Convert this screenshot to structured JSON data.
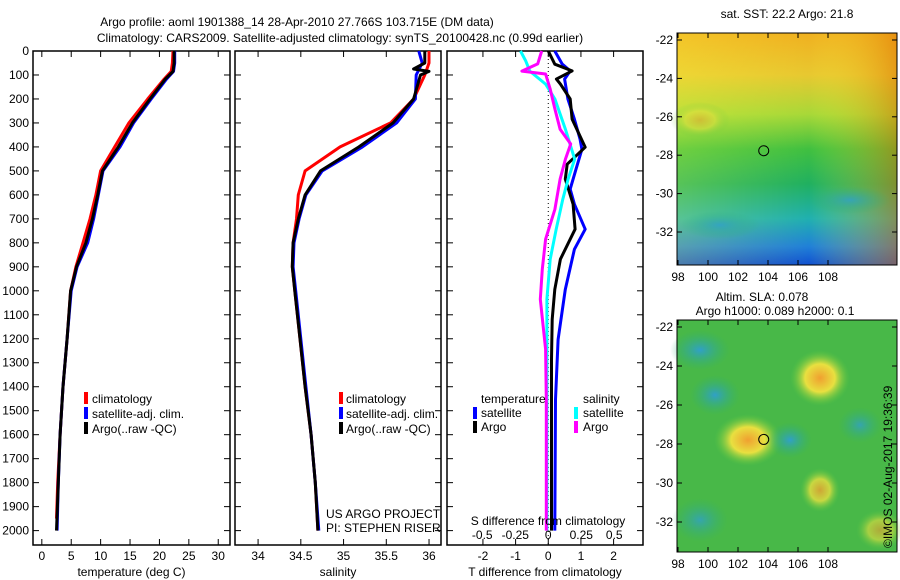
{
  "header": {
    "line1": "Argo profile: aoml 1901388_14 28-Apr-2010 27.766S 103.715E (DM data)",
    "line2": "Climatology: CARS2009. Satellite-adjusted climatology: synTS_20100428.nc (0.99d earlier)"
  },
  "colors": {
    "climatology": "#ff0000",
    "satellite": "#0000ff",
    "argo": "#000000",
    "sal_satellite": "#00ffff",
    "sal_argo": "#ff00ff"
  },
  "depth_axis": {
    "ticks": [
      0,
      100,
      200,
      300,
      400,
      500,
      600,
      700,
      800,
      900,
      1000,
      1100,
      1200,
      1300,
      1400,
      1500,
      1600,
      1700,
      1800,
      1900,
      2000
    ],
    "labels": [
      "0",
      "100",
      "200",
      "300",
      "400",
      "500",
      "600",
      "700",
      "800",
      "900",
      "1000",
      "1100",
      "1200",
      "1300",
      "1400",
      "1500",
      "1600",
      "1700",
      "1800",
      "1900",
      "2000"
    ],
    "ylim": [
      0,
      2060
    ]
  },
  "chart_data": [
    {
      "type": "line",
      "title": "",
      "xlabel": "temperature (deg C)",
      "ylabel": "depth",
      "xlim": [
        -1.5,
        32
      ],
      "xticks": [
        0,
        5,
        10,
        15,
        20,
        25,
        30
      ],
      "xticklabels": [
        "0",
        "5",
        "10",
        "15",
        "20",
        "25",
        "30"
      ],
      "legend": {
        "placement": "lower-left",
        "entries": [
          "climatology",
          "satellite-adj. clim.",
          "Argo(..raw -QC)"
        ]
      },
      "series": [
        {
          "name": "climatology",
          "color": "#ff0000",
          "depth": [
            0,
            50,
            85,
            117,
            200,
            300,
            400,
            500,
            600,
            700,
            800,
            900,
            1000,
            1200,
            1400,
            1600,
            1800,
            1950
          ],
          "values": [
            22.3,
            22.2,
            22.0,
            20.8,
            18.0,
            14.8,
            12.4,
            10.0,
            9.2,
            8.2,
            7.0,
            5.8,
            4.9,
            4.3,
            3.6,
            3.1,
            2.7,
            2.5
          ]
        },
        {
          "name": "satellite-adj. clim.",
          "color": "#0000ff",
          "depth": [
            0,
            50,
            85,
            117,
            200,
            300,
            400,
            500,
            600,
            700,
            800,
            900,
            1000,
            1200,
            1400,
            1600,
            1800,
            2000
          ],
          "values": [
            22.6,
            22.6,
            22.4,
            21.2,
            18.6,
            15.6,
            13.3,
            10.4,
            9.6,
            8.8,
            7.8,
            6.0,
            5.0,
            4.3,
            3.6,
            3.1,
            2.8,
            2.6
          ]
        },
        {
          "name": "Argo(..raw -QC)",
          "color": "#000000",
          "depth": [
            0,
            50,
            85,
            117,
            200,
            300,
            400,
            500,
            600,
            700,
            800,
            900,
            1000,
            1200,
            1400,
            1600,
            1800,
            2000
          ],
          "values": [
            22.5,
            22.5,
            22.3,
            21.0,
            18.4,
            15.4,
            13.0,
            10.3,
            9.5,
            8.6,
            7.5,
            5.9,
            4.9,
            4.3,
            3.6,
            3.1,
            2.8,
            2.5
          ]
        }
      ]
    },
    {
      "type": "line",
      "title": "",
      "xlabel": "salinity",
      "ylabel": "depth",
      "xlim": [
        33.73,
        36.14
      ],
      "xticks": [
        34,
        34.5,
        35,
        35.5,
        36
      ],
      "xticklabels": [
        "34",
        "34.5",
        "35",
        "35.5",
        "36"
      ],
      "legend": {
        "placement": "lower-left",
        "entries": [
          "climatology",
          "satellite-adj. clim.",
          "Argo(..raw -QC)"
        ]
      },
      "annotations": [
        "US ARGO PROJECT",
        "PI: STEPHEN RISER"
      ],
      "series": [
        {
          "name": "climatology",
          "color": "#ff0000",
          "depth": [
            0,
            50,
            100,
            200,
            300,
            400,
            500,
            600,
            700,
            800,
            900,
            1000,
            1200,
            1400,
            1600,
            1800,
            2000
          ],
          "values": [
            36.0,
            36.0,
            35.95,
            35.82,
            35.55,
            34.96,
            34.55,
            34.47,
            34.45,
            34.41,
            34.4,
            34.43,
            34.49,
            34.55,
            34.62,
            34.67,
            34.7
          ]
        },
        {
          "name": "satellite-adj. clim.",
          "color": "#0000ff",
          "depth": [
            0,
            50,
            100,
            200,
            300,
            400,
            500,
            600,
            700,
            800,
            900,
            1000,
            1200,
            1400,
            1600,
            1800,
            2000
          ],
          "values": [
            35.88,
            35.92,
            35.85,
            35.84,
            35.62,
            35.22,
            34.75,
            34.56,
            34.48,
            34.42,
            34.41,
            34.44,
            34.5,
            34.56,
            34.62,
            34.67,
            34.71
          ]
        },
        {
          "name": "Argo(..raw -QC)",
          "color": "#000000",
          "depth": [
            0,
            50,
            75,
            85,
            100,
            200,
            300,
            400,
            500,
            600,
            700,
            800,
            900,
            1000,
            1200,
            1400,
            1600,
            1800,
            2000
          ],
          "values": [
            35.95,
            35.95,
            35.82,
            36.0,
            35.9,
            35.82,
            35.58,
            35.18,
            34.73,
            34.55,
            34.47,
            34.41,
            34.4,
            34.43,
            34.49,
            34.55,
            34.62,
            34.67,
            34.7
          ]
        }
      ]
    },
    {
      "type": "line",
      "title": "",
      "xlabel": "T difference from climatology",
      "x2label": "S difference from climatology",
      "ylabel": "depth",
      "xlim": [
        -3.1,
        2.9
      ],
      "xticks": [
        -2,
        -1,
        0,
        1,
        2
      ],
      "xticklabels": [
        "-2",
        "-1",
        "0",
        "1",
        "2"
      ],
      "x2ticks": [
        -0.5,
        -0.25,
        0,
        0.25,
        0.5
      ],
      "x2ticklabels": [
        "-0.5",
        "-0.25",
        "0",
        "0.25",
        "0.5"
      ],
      "legend": {
        "placement": "lower-center",
        "temperature_title": "temperature",
        "salinity_title": "salinity",
        "entries": [
          "satellite",
          "Argo",
          "satellite",
          "Argo"
        ]
      },
      "series": [
        {
          "name": "temperature satellite",
          "axis": "T",
          "color": "#0000ff",
          "depth": [
            0,
            55,
            83,
            117,
            200,
            284,
            367,
            410,
            493,
            576,
            639,
            743,
            827,
            994,
            1203,
            1453,
            2000
          ],
          "values": [
            0.2,
            0.43,
            0.67,
            0.5,
            0.6,
            0.8,
            0.97,
            1.03,
            0.85,
            0.67,
            0.8,
            1.13,
            0.8,
            0.52,
            0.3,
            0.22,
            0.2
          ]
        },
        {
          "name": "temperature Argo",
          "axis": "T",
          "color": "#000000",
          "depth": [
            0,
            55,
            83,
            117,
            138,
            200,
            284,
            401,
            472,
            534,
            639,
            743,
            868,
            994,
            1119,
            1286,
            2000
          ],
          "values": [
            0.0,
            0.2,
            0.73,
            0.25,
            0.37,
            0.67,
            0.73,
            1.13,
            0.58,
            0.52,
            0.76,
            0.82,
            0.37,
            0.2,
            0.12,
            0.1,
            0.1
          ]
        },
        {
          "name": "salinity satellite",
          "axis": "S",
          "color": "#00ffff",
          "depth": [
            0,
            42,
            84,
            138,
            200,
            326,
            451,
            534,
            618,
            743,
            868,
            1035,
            1244,
            2000
          ],
          "values": [
            -0.21,
            -0.17,
            -0.14,
            -0.02,
            0.05,
            0.13,
            0.2,
            0.15,
            0.11,
            0.06,
            0.015,
            -0.01,
            -0.01,
            -0.01
          ]
        },
        {
          "name": "salinity Argo",
          "axis": "S",
          "color": "#ff00ff",
          "depth": [
            0,
            54,
            84,
            96,
            159,
            242,
            326,
            388,
            451,
            534,
            660,
            785,
            910,
            1035,
            1244,
            1453,
            2000
          ],
          "values": [
            -0.05,
            -0.08,
            -0.2,
            -0.02,
            0.015,
            0.05,
            0.09,
            0.17,
            0.13,
            0.09,
            0.05,
            -0.02,
            -0.045,
            -0.06,
            -0.02,
            -0.015,
            -0.015
          ]
        }
      ]
    }
  ],
  "maps": [
    {
      "title": "sat. SST: 22.2 Argo: 21.8",
      "xticklabels": [
        "98",
        "100",
        "102",
        "104",
        "106",
        "108"
      ],
      "xticks": [
        98,
        100,
        102,
        104,
        106,
        108
      ],
      "yticklabels": [
        "-22",
        "-24",
        "-26",
        "-28",
        "-30",
        "-32"
      ],
      "yticks": [
        -22,
        -24,
        -26,
        -28,
        -30,
        -32
      ],
      "marker": {
        "lon": 103.715,
        "lat": -27.766
      }
    },
    {
      "title_line1": "Altim. SLA: 0.078",
      "title_line2": "Argo h1000: 0.089 h2000: 0.1",
      "xticklabels": [
        "98",
        "100",
        "102",
        "104",
        "106",
        "108"
      ],
      "xticks": [
        98,
        100,
        102,
        104,
        106,
        108
      ],
      "yticklabels": [
        "-22",
        "-24",
        "-26",
        "-28",
        "-30",
        "-32"
      ],
      "yticks": [
        -22,
        -24,
        -26,
        -28,
        -30,
        -32
      ],
      "marker": {
        "lon": 103.715,
        "lat": -27.766
      }
    }
  ],
  "footer": {
    "credit": "©IMOS 02-Aug-2017 19:36:39"
  }
}
